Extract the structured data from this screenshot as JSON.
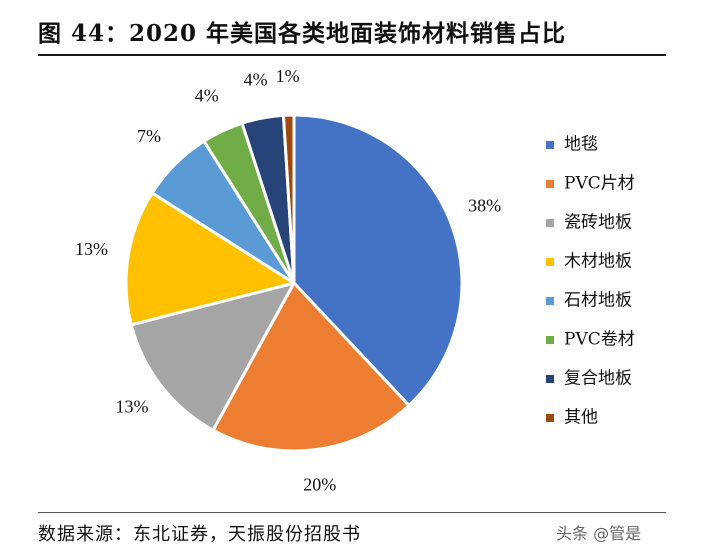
{
  "header": {
    "title": "图 44：2020 年美国各类地面装饰材料销售占比"
  },
  "chart_data": {
    "type": "pie",
    "title": "2020 年美国各类地面装饰材料销售占比",
    "categories": [
      "地毯",
      "PVC片材",
      "瓷砖地板",
      "木材地板",
      "石材地板",
      "PVC卷材",
      "复合地板",
      "其他"
    ],
    "values": [
      38,
      20,
      13,
      13,
      7,
      4,
      4,
      1
    ],
    "labels": [
      "38%",
      "20%",
      "13%",
      "13%",
      "7%",
      "4%",
      "4%",
      "1%"
    ],
    "colors": [
      "#4472C4",
      "#ED7D31",
      "#A5A5A5",
      "#FFC000",
      "#5B9BD5",
      "#70AD47",
      "#264478",
      "#9E480E"
    ],
    "legend_position": "right"
  },
  "footer": {
    "source": "数据来源：东北证券，天振股份招股书",
    "watermark": "头条 @管是"
  }
}
